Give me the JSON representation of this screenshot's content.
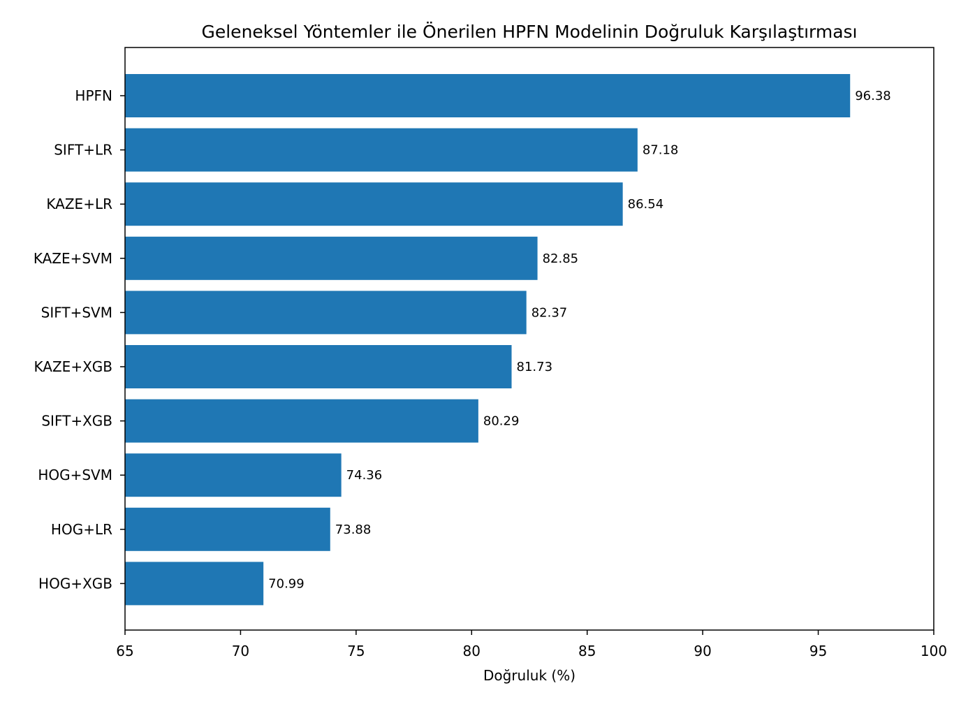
{
  "chart_data": {
    "type": "bar",
    "orientation": "horizontal",
    "title": "Geleneksel Yöntemler ile Önerilen HPFN Modelinin Doğruluk Karşılaştırması",
    "xlabel": "Doğruluk (%)",
    "ylabel": "",
    "categories": [
      "HPFN",
      "SIFT+LR",
      "KAZE+LR",
      "KAZE+SVM",
      "SIFT+SVM",
      "KAZE+XGB",
      "SIFT+XGB",
      "HOG+SVM",
      "HOG+LR",
      "HOG+XGB"
    ],
    "values": [
      96.38,
      87.18,
      86.54,
      82.85,
      82.37,
      81.73,
      80.29,
      74.36,
      73.88,
      70.99
    ],
    "value_labels": [
      "96.38",
      "87.18",
      "86.54",
      "82.85",
      "82.37",
      "81.73",
      "80.29",
      "74.36",
      "73.88",
      "70.99"
    ],
    "xlim": [
      65,
      100
    ],
    "xticks": [
      65,
      70,
      75,
      80,
      85,
      90,
      95,
      100
    ],
    "xtick_labels": [
      "65",
      "70",
      "75",
      "80",
      "85",
      "90",
      "95",
      "100"
    ],
    "bar_color": "#1f77b4",
    "grid": false,
    "legend": "none"
  }
}
